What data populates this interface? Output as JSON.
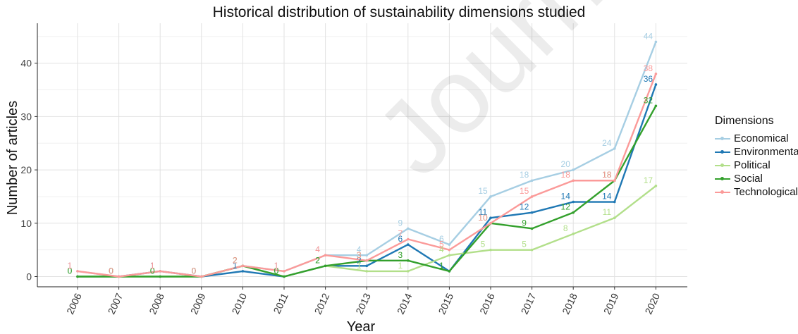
{
  "watermark": "Journal Pre-proof",
  "chart_data": {
    "type": "line",
    "title": "Historical distribution of sustainability dimensions studied",
    "xlabel": "Year",
    "ylabel": "Number of articles",
    "x": [
      "2006",
      "2007",
      "2008",
      "2009",
      "2010",
      "2011",
      "2012",
      "2013",
      "2014",
      "2015",
      "2016",
      "2017",
      "2018",
      "2019",
      "2020"
    ],
    "yticks": [
      0,
      10,
      20,
      30,
      40
    ],
    "ylim": [
      -2,
      46
    ],
    "grid": true,
    "legend_title": "Dimensions",
    "legend_position": "right",
    "series": [
      {
        "name": "Economical",
        "color": "#a6cee3",
        "values": [
          1,
          0,
          0,
          0,
          2,
          1,
          4,
          4,
          9,
          6,
          15,
          18,
          20,
          24,
          44
        ]
      },
      {
        "name": "Environmental",
        "color": "#1f78b4",
        "values": [
          0,
          0,
          1,
          0,
          1,
          0,
          2,
          2,
          6,
          1,
          11,
          12,
          14,
          14,
          36
        ]
      },
      {
        "name": "Political",
        "color": "#b2df8a",
        "values": [
          0,
          0,
          0,
          0,
          2,
          0,
          2,
          1,
          1,
          4,
          5,
          5,
          8,
          11,
          17
        ]
      },
      {
        "name": "Social",
        "color": "#33a02c",
        "values": [
          0,
          0,
          0,
          0,
          2,
          0,
          2,
          3,
          3,
          1,
          10,
          9,
          12,
          18,
          32
        ]
      },
      {
        "name": "Technological",
        "color": "#fb9a99",
        "values": [
          1,
          0,
          1,
          0,
          2,
          1,
          4,
          3,
          7,
          5,
          10,
          15,
          18,
          18,
          38
        ]
      }
    ]
  }
}
